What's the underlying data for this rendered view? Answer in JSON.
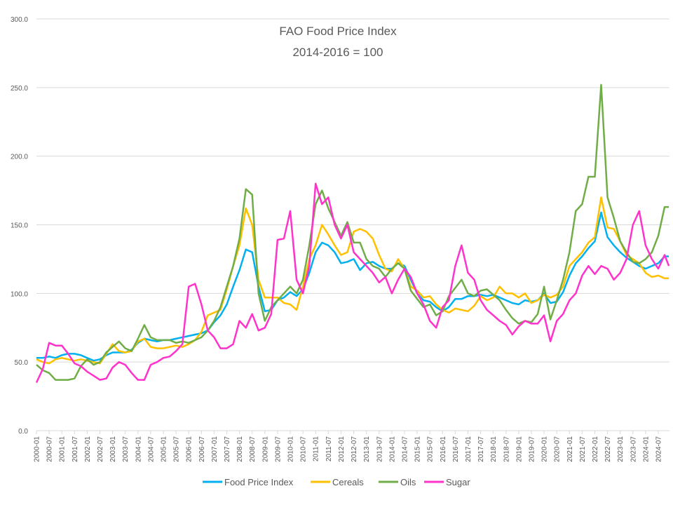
{
  "chart_data": {
    "type": "line",
    "title": "FAO Food Price Index",
    "subtitle": "2014-2016 = 100",
    "xlabel": "",
    "ylabel": "",
    "ylim": [
      0,
      300
    ],
    "y_ticks": [
      "0.0",
      "50.0",
      "100.0",
      "150.0",
      "200.0",
      "250.0",
      "300.0"
    ],
    "grid": true,
    "legend_position": "bottom",
    "x_tick_labels": [
      "2000-01",
      "2000-07",
      "2001-01",
      "2001-07",
      "2002-01",
      "2002-07",
      "2003-01",
      "2003-07",
      "2004-01",
      "2004-07",
      "2005-01",
      "2005-07",
      "2006-01",
      "2006-07",
      "2007-01",
      "2007-07",
      "2008-01",
      "2008-07",
      "2009-01",
      "2009-07",
      "2010-01",
      "2010-07",
      "2011-01",
      "2011-07",
      "2012-01",
      "2012-07",
      "2013-01",
      "2013-07",
      "2014-01",
      "2014-07",
      "2015-01",
      "2015-07",
      "2016-01",
      "2016-07",
      "2017-01",
      "2017-07",
      "2018-01",
      "2018-07",
      "2019-01",
      "2019-07",
      "2020-01",
      "2020-07",
      "2021-01",
      "2021-07",
      "2022-01",
      "2022-07",
      "2023-01",
      "2023-07",
      "2024-01",
      "2024-07"
    ],
    "x": [
      "2000-01",
      "2000-04",
      "2000-07",
      "2000-10",
      "2001-01",
      "2001-04",
      "2001-07",
      "2001-10",
      "2002-01",
      "2002-04",
      "2002-07",
      "2002-10",
      "2003-01",
      "2003-04",
      "2003-07",
      "2003-10",
      "2004-01",
      "2004-04",
      "2004-07",
      "2004-10",
      "2005-01",
      "2005-04",
      "2005-07",
      "2005-10",
      "2006-01",
      "2006-04",
      "2006-07",
      "2006-10",
      "2007-01",
      "2007-04",
      "2007-07",
      "2007-10",
      "2008-01",
      "2008-04",
      "2008-07",
      "2008-10",
      "2009-01",
      "2009-04",
      "2009-07",
      "2009-10",
      "2010-01",
      "2010-04",
      "2010-07",
      "2010-10",
      "2011-01",
      "2011-04",
      "2011-07",
      "2011-10",
      "2012-01",
      "2012-04",
      "2012-07",
      "2012-10",
      "2013-01",
      "2013-04",
      "2013-07",
      "2013-10",
      "2014-01",
      "2014-04",
      "2014-07",
      "2014-10",
      "2015-01",
      "2015-04",
      "2015-07",
      "2015-10",
      "2016-01",
      "2016-04",
      "2016-07",
      "2016-10",
      "2017-01",
      "2017-04",
      "2017-07",
      "2017-10",
      "2018-01",
      "2018-04",
      "2018-07",
      "2018-10",
      "2019-01",
      "2019-04",
      "2019-07",
      "2019-10",
      "2020-01",
      "2020-04",
      "2020-07",
      "2020-10",
      "2021-01",
      "2021-04",
      "2021-07",
      "2021-10",
      "2022-01",
      "2022-04",
      "2022-07",
      "2022-10",
      "2023-01",
      "2023-04",
      "2023-07",
      "2023-10",
      "2024-01",
      "2024-04",
      "2024-07",
      "2024-10",
      "2024-12"
    ],
    "series": [
      {
        "name": "Food Price Index",
        "color": "#00B0F0",
        "values": [
          53,
          53,
          54,
          53,
          55,
          56,
          56,
          55,
          53,
          51,
          52,
          55,
          57,
          57,
          57,
          59,
          64,
          67,
          66,
          65,
          66,
          66,
          67,
          68,
          69,
          70,
          71,
          73,
          79,
          84,
          92,
          105,
          117,
          132,
          130,
          105,
          87,
          88,
          95,
          97,
          101,
          98,
          103,
          115,
          130,
          137,
          135,
          130,
          122,
          123,
          125,
          117,
          122,
          123,
          120,
          118,
          118,
          122,
          120,
          110,
          100,
          95,
          94,
          90,
          87,
          90,
          96,
          96,
          98,
          98,
          99,
          98,
          99,
          97,
          95,
          93,
          92,
          95,
          94,
          95,
          100,
          93,
          94,
          101,
          113,
          122,
          127,
          133,
          138,
          159,
          141,
          135,
          130,
          126,
          123,
          120,
          118,
          120,
          122,
          127,
          127
        ]
      },
      {
        "name": "Cereals",
        "color": "#FFC000",
        "values": [
          52,
          50,
          49,
          52,
          53,
          52,
          51,
          52,
          51,
          50,
          49,
          56,
          63,
          58,
          57,
          58,
          65,
          67,
          61,
          60,
          60,
          61,
          62,
          61,
          63,
          66,
          72,
          84,
          86,
          88,
          103,
          120,
          135,
          162,
          150,
          110,
          97,
          97,
          97,
          93,
          92,
          88,
          105,
          125,
          135,
          150,
          143,
          135,
          128,
          130,
          145,
          147,
          145,
          140,
          128,
          118,
          116,
          125,
          118,
          105,
          102,
          97,
          98,
          92,
          88,
          86,
          89,
          88,
          87,
          91,
          98,
          95,
          97,
          105,
          100,
          100,
          97,
          100,
          93,
          95,
          99,
          97,
          99,
          105,
          120,
          125,
          130,
          137,
          141,
          170,
          148,
          147,
          138,
          128,
          125,
          122,
          115,
          112,
          113,
          111,
          111
        ]
      },
      {
        "name": "Oils",
        "color": "#70AD47",
        "values": [
          48,
          44,
          42,
          37,
          37,
          37,
          38,
          47,
          52,
          48,
          50,
          57,
          61,
          65,
          60,
          58,
          67,
          77,
          68,
          66,
          66,
          66,
          64,
          65,
          64,
          66,
          68,
          73,
          80,
          90,
          105,
          120,
          140,
          176,
          172,
          100,
          80,
          90,
          95,
          100,
          105,
          100,
          110,
          135,
          165,
          175,
          162,
          152,
          142,
          152,
          137,
          137,
          125,
          120,
          118,
          112,
          118,
          122,
          118,
          102,
          96,
          90,
          92,
          84,
          87,
          98,
          104,
          110,
          100,
          98,
          102,
          103,
          99,
          95,
          88,
          82,
          78,
          80,
          79,
          85,
          105,
          81,
          95,
          110,
          130,
          160,
          165,
          185,
          185,
          252,
          170,
          155,
          138,
          130,
          123,
          122,
          125,
          130,
          142,
          163,
          163
        ]
      },
      {
        "name": "Sugar",
        "color": "#FF33CC",
        "values": [
          35,
          45,
          64,
          62,
          62,
          56,
          49,
          47,
          43,
          40,
          37,
          38,
          46,
          50,
          48,
          42,
          37,
          37,
          48,
          50,
          53,
          54,
          58,
          63,
          105,
          107,
          92,
          73,
          68,
          60,
          60,
          63,
          80,
          75,
          85,
          73,
          75,
          85,
          139,
          140,
          160,
          110,
          100,
          120,
          180,
          165,
          170,
          150,
          140,
          150,
          130,
          125,
          120,
          115,
          108,
          112,
          100,
          110,
          118,
          112,
          100,
          92,
          80,
          75,
          90,
          95,
          120,
          135,
          115,
          110,
          95,
          88,
          84,
          80,
          77,
          70,
          76,
          80,
          78,
          78,
          84,
          65,
          80,
          85,
          95,
          100,
          113,
          120,
          114,
          120,
          118,
          110,
          115,
          125,
          150,
          160,
          135,
          125,
          118,
          128,
          120
        ]
      }
    ]
  }
}
